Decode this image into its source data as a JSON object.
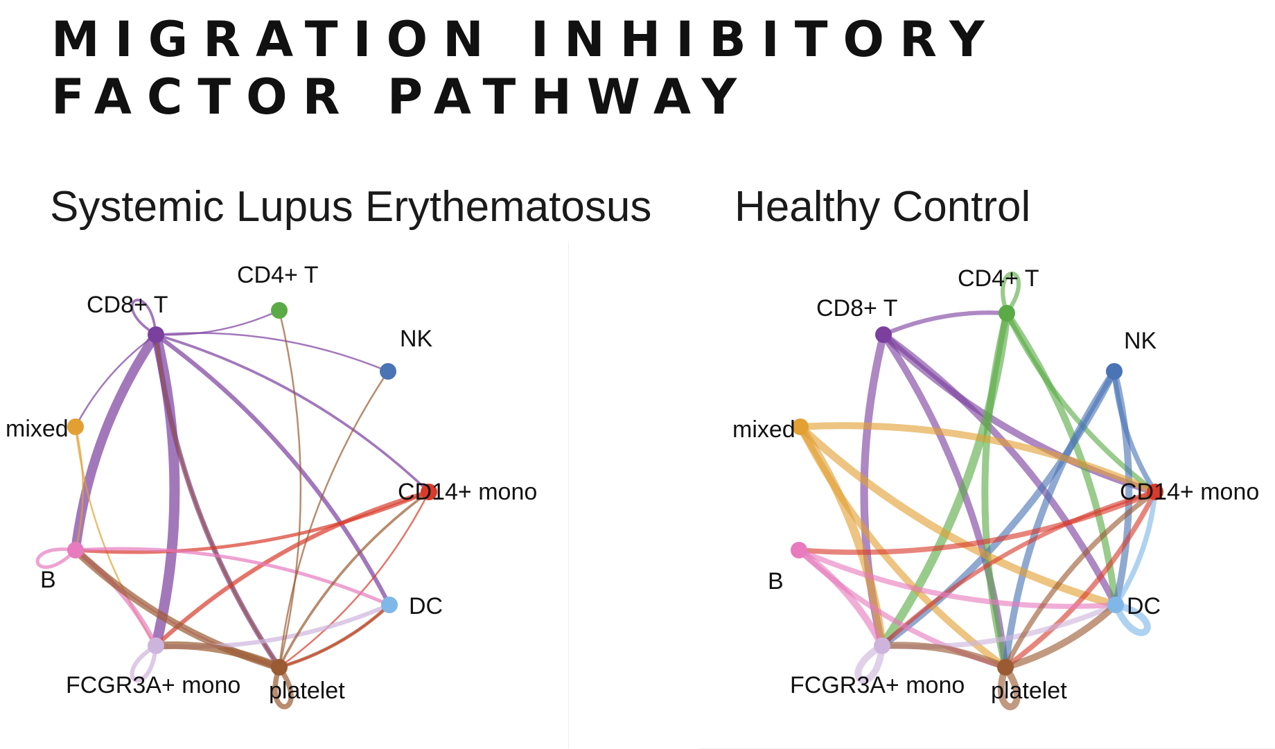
{
  "slide": {
    "title_line1": "MIGRATION INHIBITORY",
    "title_line2": "FACTOR PATHWAY"
  },
  "panels": [
    {
      "id": "sle",
      "title": "Systemic Lupus Erythematosus",
      "nodes": [
        {
          "id": "cd8",
          "label": "CD8+ T",
          "color": "#7b3f9e"
        },
        {
          "id": "cd4",
          "label": "CD4+ T",
          "color": "#5aab46"
        },
        {
          "id": "nk",
          "label": "NK",
          "color": "#4a74b4"
        },
        {
          "id": "mixed",
          "label": "mixed",
          "color": "#e2a033"
        },
        {
          "id": "cd14",
          "label": "CD14+ mono",
          "color": "#d93a2b"
        },
        {
          "id": "b",
          "label": "B",
          "color": "#e77bbd"
        },
        {
          "id": "dc",
          "label": "DC",
          "color": "#7fb7e8"
        },
        {
          "id": "fcgr",
          "label": "FCGR3A+ mono",
          "color": "#cdb4dc"
        },
        {
          "id": "plt",
          "label": "platelet",
          "color": "#9a5b32"
        }
      ],
      "edges": [
        {
          "from": "cd8",
          "to": "cd8",
          "weight": 3
        },
        {
          "from": "cd8",
          "to": "cd4",
          "weight": 2
        },
        {
          "from": "cd8",
          "to": "nk",
          "weight": 2
        },
        {
          "from": "cd8",
          "to": "mixed",
          "weight": 2
        },
        {
          "from": "cd8",
          "to": "cd14",
          "weight": 3
        },
        {
          "from": "cd8",
          "to": "b",
          "weight": 11
        },
        {
          "from": "cd8",
          "to": "fcgr",
          "weight": 12
        },
        {
          "from": "cd8",
          "to": "plt",
          "weight": 6
        },
        {
          "from": "cd8",
          "to": "dc",
          "weight": 5
        },
        {
          "from": "cd8",
          "to": "plt",
          "weight": 3,
          "color": "#9a5b32"
        },
        {
          "from": "mixed",
          "to": "b",
          "weight": 2
        },
        {
          "from": "mixed",
          "to": "fcgr",
          "weight": 2
        },
        {
          "from": "cd14",
          "to": "b",
          "weight": 4
        },
        {
          "from": "cd14",
          "to": "fcgr",
          "weight": 5
        },
        {
          "from": "cd14",
          "to": "plt",
          "weight": 2
        },
        {
          "from": "b",
          "to": "b",
          "weight": 4
        },
        {
          "from": "b",
          "to": "dc",
          "weight": 4
        },
        {
          "from": "b",
          "to": "plt",
          "weight": 2
        },
        {
          "from": "b",
          "to": "fcgr",
          "weight": 6
        },
        {
          "from": "b",
          "to": "plt",
          "weight": 9,
          "color": "#9a5b32"
        },
        {
          "from": "fcgr",
          "to": "fcgr",
          "weight": 5
        },
        {
          "from": "fcgr",
          "to": "dc",
          "weight": 5
        },
        {
          "from": "plt",
          "to": "plt",
          "weight": 6
        },
        {
          "from": "plt",
          "to": "cd4",
          "weight": 2
        },
        {
          "from": "plt",
          "to": "nk",
          "weight": 2
        },
        {
          "from": "plt",
          "to": "dc",
          "weight": 4
        },
        {
          "from": "plt",
          "to": "cd14",
          "weight": 3
        },
        {
          "from": "plt",
          "to": "fcgr",
          "weight": 9
        },
        {
          "from": "dc",
          "to": "plt",
          "weight": 2,
          "color": "#d93a2b"
        }
      ]
    },
    {
      "id": "hc",
      "title": "Healthy Control",
      "nodes": [
        {
          "id": "cd8",
          "label": "CD8+ T",
          "color": "#7b3f9e"
        },
        {
          "id": "cd4",
          "label": "CD4+ T",
          "color": "#5aab46"
        },
        {
          "id": "nk",
          "label": "NK",
          "color": "#4a74b4"
        },
        {
          "id": "mixed",
          "label": "mixed",
          "color": "#e2a033"
        },
        {
          "id": "cd14",
          "label": "CD14+ mono",
          "color": "#d93a2b"
        },
        {
          "id": "b",
          "label": "B",
          "color": "#e77bbd"
        },
        {
          "id": "dc",
          "label": "DC",
          "color": "#7fb7e8"
        },
        {
          "id": "fcgr",
          "label": "FCGR3A+ mono",
          "color": "#cdb4dc"
        },
        {
          "id": "plt",
          "label": "platelet",
          "color": "#9a5b32"
        }
      ],
      "edges": [
        {
          "from": "cd8",
          "to": "cd4",
          "weight": 5
        },
        {
          "from": "cd8",
          "to": "cd14",
          "weight": 8
        },
        {
          "from": "cd8",
          "to": "dc",
          "weight": 8
        },
        {
          "from": "cd8",
          "to": "fcgr",
          "weight": 9
        },
        {
          "from": "cd8",
          "to": "plt",
          "weight": 8
        },
        {
          "from": "cd4",
          "to": "cd4",
          "weight": 5
        },
        {
          "from": "cd4",
          "to": "fcgr",
          "weight": 10
        },
        {
          "from": "cd4",
          "to": "plt",
          "weight": 8
        },
        {
          "from": "cd4",
          "to": "dc",
          "weight": 8
        },
        {
          "from": "cd4",
          "to": "cd14",
          "weight": 6
        },
        {
          "from": "nk",
          "to": "fcgr",
          "weight": 8
        },
        {
          "from": "nk",
          "to": "plt",
          "weight": 8
        },
        {
          "from": "nk",
          "to": "dc",
          "weight": 8
        },
        {
          "from": "nk",
          "to": "cd14",
          "weight": 6
        },
        {
          "from": "mixed",
          "to": "cd14",
          "weight": 8
        },
        {
          "from": "mixed",
          "to": "dc",
          "weight": 9
        },
        {
          "from": "mixed",
          "to": "fcgr",
          "weight": 10
        },
        {
          "from": "mixed",
          "to": "plt",
          "weight": 8
        },
        {
          "from": "cd14",
          "to": "b",
          "weight": 6
        },
        {
          "from": "cd14",
          "to": "fcgr",
          "weight": 5
        },
        {
          "from": "cd14",
          "to": "plt",
          "weight": 6
        },
        {
          "from": "b",
          "to": "dc",
          "weight": 6
        },
        {
          "from": "b",
          "to": "fcgr",
          "weight": 8
        },
        {
          "from": "b",
          "to": "plt",
          "weight": 6
        },
        {
          "from": "fcgr",
          "to": "fcgr",
          "weight": 8
        },
        {
          "from": "fcgr",
          "to": "dc",
          "weight": 6
        },
        {
          "from": "plt",
          "to": "plt",
          "weight": 8
        },
        {
          "from": "plt",
          "to": "dc",
          "weight": 8
        },
        {
          "from": "plt",
          "to": "cd14",
          "weight": 6
        },
        {
          "from": "plt",
          "to": "fcgr",
          "weight": 8
        },
        {
          "from": "dc",
          "to": "dc",
          "weight": 8
        },
        {
          "from": "dc",
          "to": "cd14",
          "weight": 6
        }
      ]
    }
  ]
}
